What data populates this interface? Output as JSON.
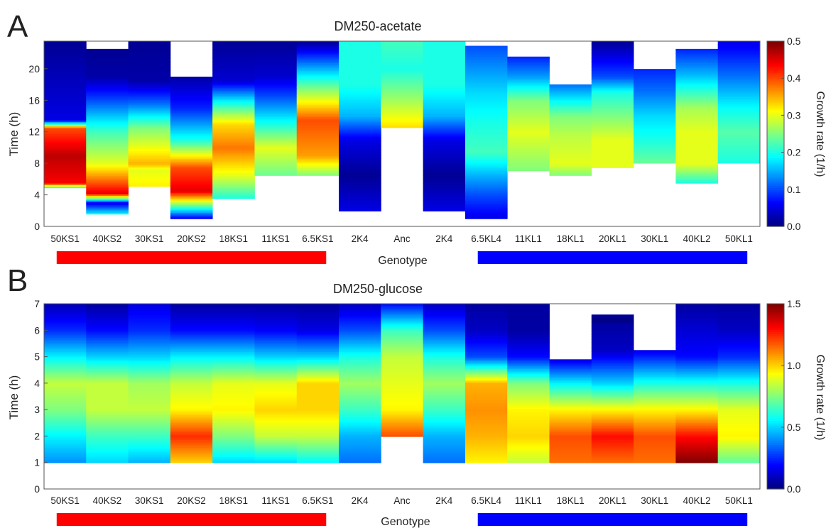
{
  "xlabel": "Genotype",
  "colorbar_label": "Growth rate (1/h)",
  "chart_data": [
    {
      "type": "heatmap",
      "panel_label": "A",
      "title": "DM250-acetate",
      "ylabel": "Time (h)",
      "ylim": [
        0,
        23.5
      ],
      "yticks": [
        0,
        4,
        8,
        12,
        16,
        20
      ],
      "categories": [
        "50KS1",
        "40KS2",
        "30KS1",
        "20KS2",
        "18KS1",
        "11KS1",
        "6.5KS1",
        "2K4",
        "Anc",
        "2K4",
        "6.5KL4",
        "11KL1",
        "18KL1",
        "20KL1",
        "30KL1",
        "40KL2",
        "50KL1"
      ],
      "colorbar": {
        "range": [
          0,
          0.5
        ],
        "ticks": [
          0,
          0.1,
          0.2,
          0.3,
          0.4,
          0.5
        ],
        "tick_labels": [
          "0.0",
          "0.1",
          "0.2",
          "0.3",
          "0.4",
          "0.5"
        ]
      },
      "profiles": [
        {
          "name": "50KS1",
          "segments": [
            [
              4.8,
              0.15
            ],
            [
              5.5,
              0.44
            ],
            [
              9,
              0.47
            ],
            [
              12.5,
              0.4
            ],
            [
              13.5,
              0.05
            ],
            [
              23.5,
              0.01
            ]
          ]
        },
        {
          "name": "40KS2",
          "segments": [
            [
              1.5,
              0.2
            ],
            [
              3,
              0.05
            ],
            [
              4.2,
              0.45
            ],
            [
              8,
              0.3
            ],
            [
              12,
              0.22
            ],
            [
              16,
              0.1
            ],
            [
              19,
              0.02
            ],
            [
              22.5,
              0.01
            ]
          ]
        },
        {
          "name": "30KS1",
          "segments": [
            [
              5,
              0.32
            ],
            [
              7.2,
              0.3
            ],
            [
              8,
              0.35
            ],
            [
              12.5,
              0.25
            ],
            [
              15.5,
              0.12
            ],
            [
              18.5,
              0.02
            ],
            [
              23.5,
              0.01
            ]
          ]
        },
        {
          "name": "20KS2",
          "segments": [
            [
              1,
              0.05
            ],
            [
              3.2,
              0.3
            ],
            [
              4.5,
              0.45
            ],
            [
              7.5,
              0.4
            ],
            [
              11,
              0.2
            ],
            [
              15,
              0.08
            ],
            [
              19,
              0.02
            ]
          ]
        },
        {
          "name": "18KS1",
          "segments": [
            [
              3.5,
              0.2
            ],
            [
              6.5,
              0.3
            ],
            [
              10,
              0.38
            ],
            [
              13,
              0.33
            ],
            [
              16,
              0.18
            ],
            [
              18.5,
              0.04
            ],
            [
              23.5,
              0.01
            ]
          ]
        },
        {
          "name": "11KS1",
          "segments": [
            [
              6.5,
              0.24
            ],
            [
              10,
              0.3
            ],
            [
              13,
              0.2
            ],
            [
              16.5,
              0.1
            ],
            [
              19,
              0.04
            ],
            [
              23.5,
              0.01
            ]
          ]
        },
        {
          "name": "6.5KS1",
          "segments": [
            [
              6.5,
              0.25
            ],
            [
              9,
              0.36
            ],
            [
              13.5,
              0.4
            ],
            [
              17.5,
              0.25
            ],
            [
              23.5,
              0.01
            ]
          ]
        },
        {
          "name": "2K4",
          "segments": [
            [
              2,
              0.05
            ],
            [
              6.5,
              0.01
            ],
            [
              11,
              0.05
            ],
            [
              14,
              0.15
            ],
            [
              18,
              0.2
            ],
            [
              23.5,
              0.2
            ]
          ]
        },
        {
          "name": "Anc",
          "segments": [
            [
              12.5,
              0.33
            ],
            [
              17,
              0.25
            ],
            [
              20,
              0.2
            ],
            [
              23.5,
              0.22
            ]
          ]
        },
        {
          "name": "2K4",
          "segments": [
            [
              2,
              0.05
            ],
            [
              6.5,
              0.01
            ],
            [
              11,
              0.05
            ],
            [
              14,
              0.15
            ],
            [
              18,
              0.2
            ],
            [
              23.5,
              0.2
            ]
          ]
        },
        {
          "name": "6.5KL4",
          "segments": [
            [
              1,
              0.05
            ],
            [
              4,
              0.1
            ],
            [
              6.5,
              0.15
            ],
            [
              9.5,
              0.22
            ],
            [
              13,
              0.2
            ],
            [
              17,
              0.17
            ],
            [
              23,
              0.1
            ]
          ]
        },
        {
          "name": "11KL1",
          "segments": [
            [
              7,
              0.25
            ],
            [
              12,
              0.3
            ],
            [
              16,
              0.25
            ],
            [
              19,
              0.14
            ],
            [
              21.5,
              0.08
            ]
          ]
        },
        {
          "name": "18KL1",
          "segments": [
            [
              6.5,
              0.25
            ],
            [
              8,
              0.3
            ],
            [
              11.5,
              0.28
            ],
            [
              14,
              0.25
            ],
            [
              18,
              0.12
            ]
          ]
        },
        {
          "name": "20KL1",
          "segments": [
            [
              7.5,
              0.3
            ],
            [
              11,
              0.3
            ],
            [
              14,
              0.25
            ],
            [
              17,
              0.2
            ],
            [
              19,
              0.1
            ],
            [
              23.5,
              0.01
            ]
          ]
        },
        {
          "name": "30KL1",
          "segments": [
            [
              8,
              0.24
            ],
            [
              11,
              0.2
            ],
            [
              14,
              0.17
            ],
            [
              17,
              0.12
            ],
            [
              20,
              0.08
            ]
          ]
        },
        {
          "name": "40KL2",
          "segments": [
            [
              5.5,
              0.2
            ],
            [
              8,
              0.3
            ],
            [
              12,
              0.3
            ],
            [
              15,
              0.27
            ],
            [
              19,
              0.16
            ],
            [
              22.5,
              0.08
            ]
          ]
        },
        {
          "name": "50KL1",
          "segments": [
            [
              8,
              0.2
            ],
            [
              12,
              0.23
            ],
            [
              15,
              0.19
            ],
            [
              19,
              0.12
            ],
            [
              23.5,
              0.05
            ]
          ]
        }
      ]
    },
    {
      "type": "heatmap",
      "panel_label": "B",
      "title": "DM250-glucose",
      "ylabel": "Time (h)",
      "ylim": [
        0,
        7
      ],
      "yticks": [
        0,
        1,
        2,
        3,
        4,
        5,
        6,
        7
      ],
      "categories": [
        "50KS1",
        "40KS2",
        "30KS1",
        "20KS2",
        "18KS1",
        "11KS1",
        "6.5KS1",
        "2K4",
        "Anc",
        "2K4",
        "6.5KL4",
        "11KL1",
        "18KL1",
        "20KL1",
        "30KL1",
        "40KL2",
        "50KL1"
      ],
      "colorbar": {
        "range": [
          0,
          1.5
        ],
        "ticks": [
          0,
          0.5,
          1.0,
          1.5
        ],
        "tick_labels": [
          "0.0",
          "0.5",
          "1.0",
          "1.5"
        ]
      },
      "profiles": [
        {
          "name": "50KS1",
          "segments": [
            [
              1,
              0.4
            ],
            [
              2,
              0.55
            ],
            [
              3,
              0.75
            ],
            [
              4,
              0.85
            ],
            [
              5,
              0.55
            ],
            [
              6,
              0.25
            ],
            [
              7,
              0.08
            ]
          ]
        },
        {
          "name": "40KS2",
          "segments": [
            [
              1,
              0.5
            ],
            [
              2,
              0.65
            ],
            [
              3,
              0.85
            ],
            [
              4,
              0.85
            ],
            [
              5,
              0.5
            ],
            [
              6,
              0.2
            ],
            [
              7,
              0.05
            ]
          ]
        },
        {
          "name": "30KS1",
          "segments": [
            [
              1,
              0.45
            ],
            [
              2,
              0.65
            ],
            [
              3,
              0.85
            ],
            [
              4,
              0.8
            ],
            [
              5,
              0.5
            ],
            [
              6,
              0.25
            ],
            [
              7,
              0.15
            ]
          ]
        },
        {
          "name": "20KS2",
          "segments": [
            [
              1,
              1.0
            ],
            [
              2,
              1.25
            ],
            [
              3,
              0.95
            ],
            [
              4,
              0.85
            ],
            [
              5,
              0.55
            ],
            [
              6,
              0.2
            ],
            [
              7,
              0.05
            ]
          ]
        },
        {
          "name": "18KS1",
          "segments": [
            [
              1,
              0.5
            ],
            [
              2,
              0.75
            ],
            [
              3,
              0.95
            ],
            [
              4,
              0.9
            ],
            [
              5,
              0.55
            ],
            [
              6,
              0.2
            ],
            [
              7,
              0.05
            ]
          ]
        },
        {
          "name": "11KS1",
          "segments": [
            [
              1,
              0.5
            ],
            [
              2,
              0.85
            ],
            [
              3,
              1.0
            ],
            [
              4,
              0.9
            ],
            [
              5,
              0.5
            ],
            [
              6,
              0.18
            ],
            [
              7,
              0.05
            ]
          ]
        },
        {
          "name": "6.5KS1",
          "segments": [
            [
              1,
              0.55
            ],
            [
              2,
              0.85
            ],
            [
              3,
              1.0
            ],
            [
              4,
              1.0
            ],
            [
              5,
              0.5
            ],
            [
              6,
              0.15
            ],
            [
              7,
              0.05
            ]
          ]
        },
        {
          "name": "2K4",
          "segments": [
            [
              1,
              0.35
            ],
            [
              2,
              0.45
            ],
            [
              3,
              0.65
            ],
            [
              4,
              0.8
            ],
            [
              5,
              0.6
            ],
            [
              6,
              0.3
            ],
            [
              7,
              0.1
            ]
          ]
        },
        {
          "name": "Anc",
          "segments": [
            [
              2,
              1.2
            ],
            [
              3,
              0.95
            ],
            [
              4,
              0.9
            ],
            [
              5,
              0.85
            ],
            [
              6,
              0.65
            ],
            [
              7,
              0.2
            ]
          ]
        },
        {
          "name": "2K4",
          "segments": [
            [
              1,
              0.35
            ],
            [
              2,
              0.45
            ],
            [
              3,
              0.65
            ],
            [
              4,
              0.8
            ],
            [
              5,
              0.6
            ],
            [
              6,
              0.3
            ],
            [
              7,
              0.1
            ]
          ]
        },
        {
          "name": "6.5KL4",
          "segments": [
            [
              1,
              0.95
            ],
            [
              2,
              1.05
            ],
            [
              3,
              1.1
            ],
            [
              4,
              1.05
            ],
            [
              5,
              0.3
            ],
            [
              6,
              0.1
            ],
            [
              7,
              0.05
            ]
          ]
        },
        {
          "name": "11KL1",
          "segments": [
            [
              1,
              0.85
            ],
            [
              2,
              1.0
            ],
            [
              3,
              0.95
            ],
            [
              4,
              0.75
            ],
            [
              5,
              0.2
            ],
            [
              6,
              0.05
            ],
            [
              7,
              0.05
            ]
          ]
        },
        {
          "name": "18KL1",
          "segments": [
            [
              1,
              1.15
            ],
            [
              2,
              1.2
            ],
            [
              3,
              0.95
            ],
            [
              4,
              0.55
            ],
            [
              4.9,
              0.15
            ]
          ]
        },
        {
          "name": "20KL1",
          "segments": [
            [
              1,
              1.15
            ],
            [
              2,
              1.3
            ],
            [
              3,
              0.95
            ],
            [
              4,
              0.5
            ],
            [
              5.25,
              0.1
            ],
            [
              6.25,
              0.05
            ],
            [
              6.4,
              0.0
            ],
            [
              6.6,
              0.05
            ]
          ]
        },
        {
          "name": "30KL1",
          "segments": [
            [
              1,
              1.15
            ],
            [
              2,
              1.2
            ],
            [
              3,
              0.95
            ],
            [
              4,
              0.6
            ],
            [
              5.25,
              0.15
            ]
          ]
        },
        {
          "name": "40KL2",
          "segments": [
            [
              1,
              1.5
            ],
            [
              2,
              1.3
            ],
            [
              3,
              0.95
            ],
            [
              4,
              0.6
            ],
            [
              5,
              0.2
            ],
            [
              7,
              0.05
            ]
          ]
        },
        {
          "name": "50KL1",
          "segments": [
            [
              1,
              0.7
            ],
            [
              2,
              0.95
            ],
            [
              3,
              0.9
            ],
            [
              4,
              0.6
            ],
            [
              5,
              0.25
            ],
            [
              6,
              0.1
            ],
            [
              7,
              0.05
            ]
          ]
        }
      ]
    }
  ],
  "genotype_bars": {
    "red_color": "#ff0000",
    "blue_color": "#0000ff",
    "red_span": [
      "50KS1",
      "6.5KS1"
    ],
    "blue_span": [
      "6.5KL4",
      "50KL1"
    ]
  }
}
